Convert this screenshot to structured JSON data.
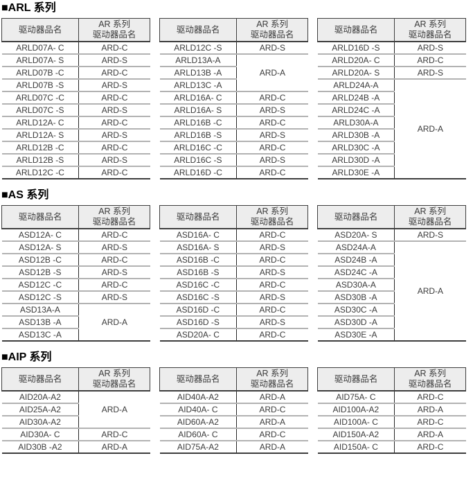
{
  "colors": {
    "page_bg": "#ffffff",
    "header_bg": "#ededed",
    "border_dark": "#3d3d3d",
    "border_divider": "#262626",
    "border_light": "#b2b2b2",
    "text": "#3a3a3a",
    "title_text": "#000000"
  },
  "table_header": {
    "driver_col": "驱动器品名",
    "ar_col": "AR 系列\n驱动器品名"
  },
  "sections": [
    {
      "id": "arl",
      "title": "■ARL 系列",
      "tables": [
        {
          "rows": [
            {
              "name": "ARLD07A- C",
              "ar": "ARD-C"
            },
            {
              "name": "ARLD07A- S",
              "ar": "ARD-S"
            },
            {
              "name": "ARLD07B -C",
              "ar": "ARD-C"
            },
            {
              "name": "ARLD07B -S",
              "ar": "ARD-S"
            },
            {
              "name": "ARLD07C -C",
              "ar": "ARD-C"
            },
            {
              "name": "ARLD07C -S",
              "ar": "ARD-S"
            },
            {
              "name": "ARLD12A- C",
              "ar": "ARD-C"
            },
            {
              "name": "ARLD12A- S",
              "ar": "ARD-S"
            },
            {
              "name": "ARLD12B -C",
              "ar": "ARD-C"
            },
            {
              "name": "ARLD12B -S",
              "ar": "ARD-S"
            },
            {
              "name": "ARLD12C -C",
              "ar": "ARD-C"
            }
          ]
        },
        {
          "rows": [
            {
              "name": "ARLD12C -S",
              "ar": "ARD-S"
            },
            {
              "name": "ARLD13A-A",
              "ar": "ARD-A",
              "span": 3
            },
            {
              "name": "ARLD13B -A"
            },
            {
              "name": "ARLD13C -A"
            },
            {
              "name": "ARLD16A- C",
              "ar": "ARD-C"
            },
            {
              "name": "ARLD16A- S",
              "ar": "ARD-S"
            },
            {
              "name": "ARLD16B -C",
              "ar": "ARD-C"
            },
            {
              "name": "ARLD16B -S",
              "ar": "ARD-S"
            },
            {
              "name": "ARLD16C -C",
              "ar": "ARD-C"
            },
            {
              "name": "ARLD16C -S",
              "ar": "ARD-S"
            },
            {
              "name": "ARLD16D -C",
              "ar": "ARD-C"
            }
          ]
        },
        {
          "rows": [
            {
              "name": "ARLD16D -S",
              "ar": "ARD-S"
            },
            {
              "name": "ARLD20A- C",
              "ar": "ARD-C"
            },
            {
              "name": "ARLD20A- S",
              "ar": "ARD-S"
            },
            {
              "name": "ARLD24A-A",
              "ar": "ARD-A",
              "span": 8
            },
            {
              "name": "ARLD24B -A"
            },
            {
              "name": "ARLD24C -A"
            },
            {
              "name": "ARLD30A-A"
            },
            {
              "name": "ARLD30B -A"
            },
            {
              "name": "ARLD30C -A"
            },
            {
              "name": "ARLD30D -A"
            },
            {
              "name": "ARLD30E -A"
            }
          ]
        }
      ]
    },
    {
      "id": "as",
      "title": "■AS 系列",
      "tables": [
        {
          "rows": [
            {
              "name": "ASD12A- C",
              "ar": "ARD-C"
            },
            {
              "name": "ASD12A- S",
              "ar": "ARD-S"
            },
            {
              "name": "ASD12B -C",
              "ar": "ARD-C"
            },
            {
              "name": "ASD12B -S",
              "ar": "ARD-S"
            },
            {
              "name": "ASD12C -C",
              "ar": "ARD-C"
            },
            {
              "name": "ASD12C -S",
              "ar": "ARD-S"
            },
            {
              "name": "ASD13A-A",
              "ar": "ARD-A",
              "span": 3
            },
            {
              "name": "ASD13B -A"
            },
            {
              "name": "ASD13C -A"
            }
          ]
        },
        {
          "rows": [
            {
              "name": "ASD16A- C",
              "ar": "ARD-C"
            },
            {
              "name": "ASD16A- S",
              "ar": "ARD-S"
            },
            {
              "name": "ASD16B -C",
              "ar": "ARD-C"
            },
            {
              "name": "ASD16B -S",
              "ar": "ARD-S"
            },
            {
              "name": "ASD16C -C",
              "ar": "ARD-C"
            },
            {
              "name": "ASD16C -S",
              "ar": "ARD-S"
            },
            {
              "name": "ASD16D -C",
              "ar": "ARD-C"
            },
            {
              "name": "ASD16D -S",
              "ar": "ARD-S"
            },
            {
              "name": "ASD20A- C",
              "ar": "ARD-C"
            }
          ]
        },
        {
          "rows": [
            {
              "name": "ASD20A- S",
              "ar": "ARD-S"
            },
            {
              "name": "ASD24A-A",
              "ar": "ARD-A",
              "span": 8
            },
            {
              "name": "ASD24B -A"
            },
            {
              "name": "ASD24C -A"
            },
            {
              "name": "ASD30A-A"
            },
            {
              "name": "ASD30B -A"
            },
            {
              "name": "ASD30C -A"
            },
            {
              "name": "ASD30D -A"
            },
            {
              "name": "ASD30E -A"
            }
          ]
        }
      ]
    },
    {
      "id": "aip",
      "title": "■AIP 系列",
      "tables": [
        {
          "rows": [
            {
              "name": "AID20A-A2",
              "ar": "ARD-A",
              "span": 3
            },
            {
              "name": "AID25A-A2"
            },
            {
              "name": "AID30A-A2"
            },
            {
              "name": "AID30A- C",
              "ar": "ARD-C"
            },
            {
              "name": "AID30B -A2",
              "ar": "ARD-A"
            }
          ]
        },
        {
          "rows": [
            {
              "name": "AID40A-A2",
              "ar": "ARD-A"
            },
            {
              "name": "AID40A- C",
              "ar": "ARD-C"
            },
            {
              "name": "AID60A-A2",
              "ar": "ARD-A"
            },
            {
              "name": "AID60A- C",
              "ar": "ARD-C"
            },
            {
              "name": "AID75A-A2",
              "ar": "ARD-A"
            }
          ]
        },
        {
          "rows": [
            {
              "name": "AID75A- C",
              "ar": "ARD-C"
            },
            {
              "name": "AID100A-A2",
              "ar": "ARD-A"
            },
            {
              "name": "AID100A- C",
              "ar": "ARD-C"
            },
            {
              "name": "AID150A-A2",
              "ar": "ARD-A"
            },
            {
              "name": "AID150A- C",
              "ar": "ARD-C"
            }
          ]
        }
      ]
    }
  ]
}
